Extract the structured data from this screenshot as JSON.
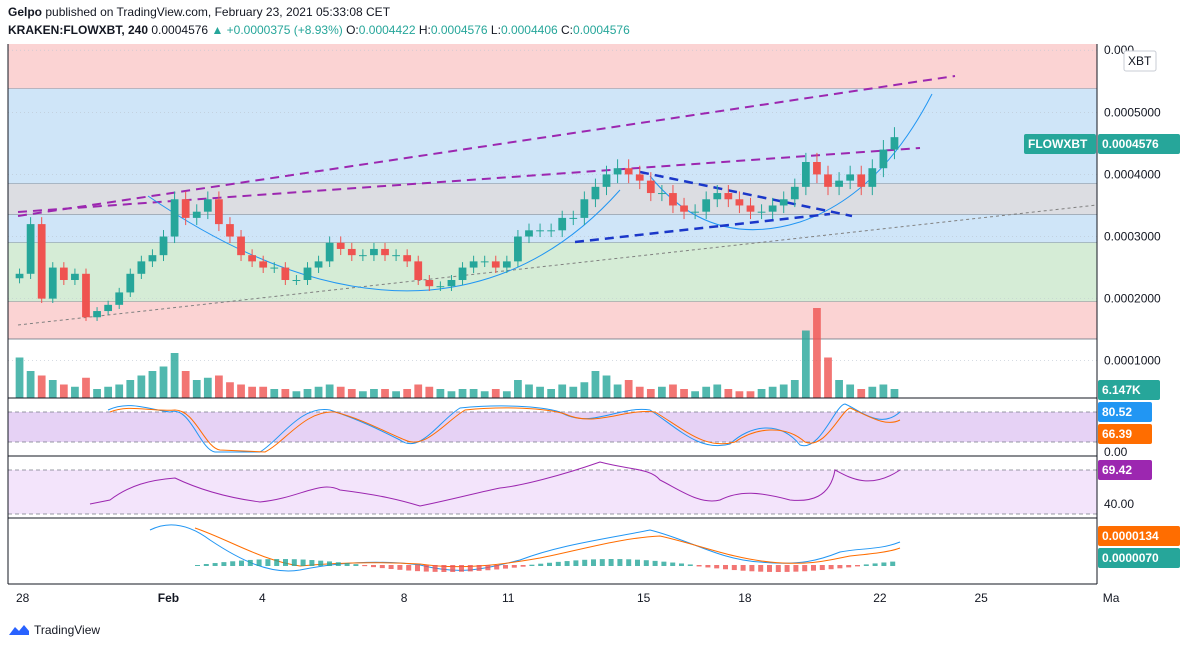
{
  "header": {
    "publisher": "Gelpo",
    "published_text": "published on TradingView.com, February 23, 2021 05:33:08 CET",
    "symbol": "KRAKEN:FLOWXBT, 240",
    "last": "0.0004576",
    "change": "▲ +0.0000375 (+8.93%)",
    "o_label": "O:",
    "o": "0.0004422",
    "h_label": "H:",
    "h": "0.0004576",
    "l_label": "L:",
    "l": "0.0004406",
    "c_label": "C:",
    "c": "0.0004576"
  },
  "brand": {
    "name": "TradingView"
  },
  "colors": {
    "up": "#26a69a",
    "down": "#ef5350",
    "accent": "#2962ff",
    "purple": "#9c27b0"
  },
  "chart_data": {
    "type": "candlestick",
    "title": "KRAKEN:FLOWXBT, 240",
    "x_ticks": [
      {
        "label": "28",
        "x": 0
      },
      {
        "label": "Feb",
        "x": 21
      },
      {
        "label": "4",
        "x": 36
      },
      {
        "label": "8",
        "x": 57
      },
      {
        "label": "11",
        "x": 72
      },
      {
        "label": "15",
        "x": 92
      },
      {
        "label": "18",
        "x": 107
      },
      {
        "label": "22",
        "x": 127
      },
      {
        "label": "25",
        "x": 142
      },
      {
        "label": "Ma",
        "x": 161
      }
    ],
    "price_axis": {
      "ylim": [
        4e-05,
        0.00061
      ],
      "ticks": [
        "0.0001000",
        "0.0002000",
        "0.0003000",
        "0.0004000",
        "0.0005000",
        "0.000"
      ],
      "tick_values": [
        0.0001,
        0.0002,
        0.0003,
        0.0004,
        0.0005,
        0.0006
      ],
      "currency_badge": "XBT",
      "last_price_label": "FLOWXBT",
      "last_price": "0.0004576",
      "last_price_value": 0.0004576
    },
    "zones": [
      {
        "name": "resistance-red-top",
        "from": 0.000538,
        "to": 0.00061,
        "color": "#fbd3d3"
      },
      {
        "name": "blue-zone",
        "from": 0.000385,
        "to": 0.000538,
        "color": "#cfe5f8"
      },
      {
        "name": "grey-zone",
        "from": 0.000335,
        "to": 0.000385,
        "color": "#dcdde2"
      },
      {
        "name": "blue-zone-2",
        "from": 0.00029,
        "to": 0.000335,
        "color": "#cfe5f8"
      },
      {
        "name": "green-zone",
        "from": 0.000195,
        "to": 0.00029,
        "color": "#d5ecd6"
      },
      {
        "name": "support-red-bottom",
        "from": 0.000135,
        "to": 0.000195,
        "color": "#fbd3d3"
      }
    ],
    "candles_close": [
      0.00024,
      0.00032,
      0.0002,
      0.00025,
      0.00023,
      0.00024,
      0.00017,
      0.00018,
      0.00019,
      0.00021,
      0.00024,
      0.00026,
      0.00027,
      0.0003,
      0.00036,
      0.00033,
      0.00034,
      0.00036,
      0.00032,
      0.0003,
      0.00027,
      0.00026,
      0.00025,
      0.00025,
      0.00023,
      0.00023,
      0.00025,
      0.00026,
      0.00029,
      0.00028,
      0.00027,
      0.00027,
      0.00028,
      0.00027,
      0.00027,
      0.00026,
      0.00023,
      0.00022,
      0.00022,
      0.00023,
      0.00025,
      0.00026,
      0.00026,
      0.00025,
      0.00026,
      0.0003,
      0.00031,
      0.00031,
      0.00031,
      0.00033,
      0.00033,
      0.00036,
      0.00038,
      0.0004,
      0.00041,
      0.0004,
      0.00039,
      0.00037,
      0.00037,
      0.00035,
      0.00034,
      0.00034,
      0.00036,
      0.00037,
      0.00036,
      0.00035,
      0.00034,
      0.00034,
      0.00035,
      0.00036,
      0.00038,
      0.00042,
      0.0004,
      0.00038,
      0.00039,
      0.0004,
      0.00038,
      0.00041,
      0.00044,
      0.00046
    ],
    "volume": {
      "last_label": "6.147K",
      "values": [
        18,
        12,
        10,
        8,
        6,
        5,
        9,
        4,
        5,
        6,
        8,
        10,
        12,
        14,
        20,
        12,
        8,
        9,
        10,
        7,
        6,
        5,
        5,
        4,
        4,
        3,
        4,
        5,
        6,
        5,
        4,
        3,
        4,
        4,
        3,
        4,
        6,
        5,
        4,
        3,
        4,
        4,
        3,
        4,
        3,
        8,
        6,
        5,
        4,
        6,
        5,
        7,
        12,
        10,
        6,
        8,
        5,
        4,
        5,
        6,
        4,
        3,
        5,
        6,
        4,
        3,
        3,
        4,
        5,
        6,
        8,
        30,
        40,
        18,
        8,
        6,
        4,
        5,
        6,
        4
      ]
    },
    "stochastic": {
      "k_label": "80.52",
      "d_label": "66.39",
      "zero_label": "0.00",
      "k": [
        80.52
      ],
      "d": [
        66.39
      ]
    },
    "rsi": {
      "value_label": "69.42",
      "level_label": "40.00",
      "value": [
        69.42
      ]
    },
    "macd": {
      "macd_label": "0.0000134",
      "signal_label": "0.0000070",
      "macd": [
        1.34e-05
      ],
      "signal": [
        7e-06
      ]
    }
  }
}
